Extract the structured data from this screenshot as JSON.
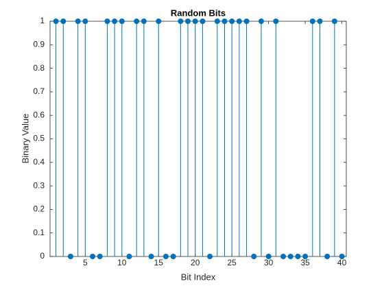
{
  "chart_data": {
    "type": "stem",
    "title": "Random Bits",
    "xlabel": "Bit Index",
    "ylabel": "Binary Value",
    "x": [
      1,
      2,
      3,
      4,
      5,
      6,
      7,
      8,
      9,
      10,
      11,
      12,
      13,
      14,
      15,
      16,
      17,
      18,
      19,
      20,
      21,
      22,
      23,
      24,
      25,
      26,
      27,
      28,
      29,
      30,
      31,
      32,
      33,
      34,
      35,
      36,
      37,
      38,
      39,
      40
    ],
    "values": [
      1,
      1,
      0,
      1,
      1,
      0,
      0,
      1,
      1,
      1,
      0,
      1,
      1,
      0,
      1,
      0,
      0,
      1,
      1,
      1,
      1,
      0,
      1,
      1,
      1,
      1,
      1,
      0,
      1,
      0,
      1,
      0,
      0,
      0,
      0,
      1,
      1,
      0,
      1,
      0
    ],
    "color": "#0072bd",
    "xlim": [
      0.2,
      40.6
    ],
    "xticks": [
      5,
      10,
      15,
      20,
      25,
      30,
      35,
      40
    ],
    "ylim": [
      0,
      1
    ],
    "yticks": [
      0,
      0.1,
      0.2,
      0.3,
      0.4,
      0.5,
      0.6,
      0.7,
      0.8,
      0.9,
      1
    ]
  }
}
